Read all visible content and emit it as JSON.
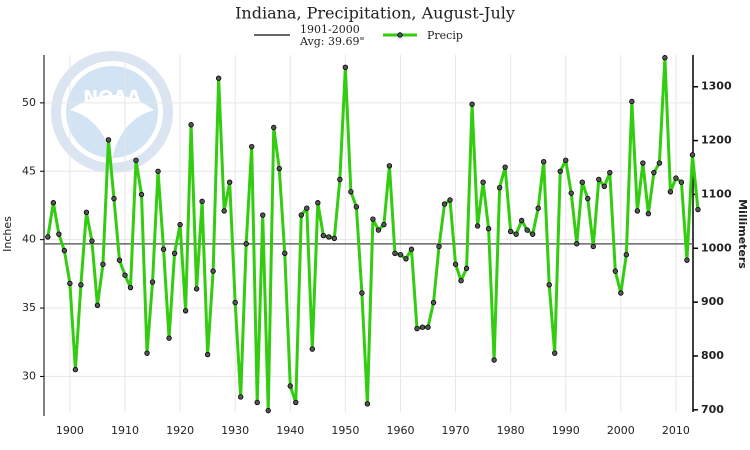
{
  "chart_data": {
    "type": "line",
    "title": "Indiana, Precipitation, August-July",
    "logo_text": "NOAA",
    "ylabel": "Inches",
    "y2label": "Millimeters",
    "x": [
      1896,
      1897,
      1898,
      1899,
      1900,
      1901,
      1902,
      1903,
      1904,
      1905,
      1906,
      1907,
      1908,
      1909,
      1910,
      1911,
      1912,
      1913,
      1914,
      1915,
      1916,
      1917,
      1918,
      1919,
      1920,
      1921,
      1922,
      1923,
      1924,
      1925,
      1926,
      1927,
      1928,
      1929,
      1930,
      1931,
      1932,
      1933,
      1934,
      1935,
      1936,
      1937,
      1938,
      1939,
      1940,
      1941,
      1942,
      1943,
      1944,
      1945,
      1946,
      1947,
      1948,
      1949,
      1950,
      1951,
      1952,
      1953,
      1954,
      1955,
      1956,
      1957,
      1958,
      1959,
      1960,
      1961,
      1962,
      1963,
      1964,
      1965,
      1966,
      1967,
      1968,
      1969,
      1970,
      1971,
      1972,
      1973,
      1974,
      1975,
      1976,
      1977,
      1978,
      1979,
      1980,
      1981,
      1982,
      1983,
      1984,
      1985,
      1986,
      1987,
      1988,
      1989,
      1990,
      1991,
      1992,
      1993,
      1994,
      1995,
      1996,
      1997,
      1998,
      1999,
      2000,
      2001,
      2002,
      2003,
      2004,
      2005,
      2006,
      2007,
      2008,
      2009,
      2010,
      2011,
      2012,
      2013,
      2014
    ],
    "series": [
      {
        "name": "Precip",
        "color": "#33cc11",
        "values": [
          40.2,
          42.7,
          40.4,
          39.2,
          36.8,
          30.5,
          36.7,
          42.0,
          39.9,
          35.2,
          38.2,
          47.3,
          43.0,
          38.5,
          37.4,
          36.5,
          45.8,
          43.3,
          31.7,
          36.9,
          45.0,
          39.3,
          32.8,
          39.0,
          41.1,
          34.8,
          48.4,
          36.4,
          42.8,
          31.6,
          37.7,
          51.8,
          42.1,
          44.2,
          35.4,
          28.5,
          39.7,
          46.8,
          28.1,
          41.8,
          27.5,
          48.2,
          45.2,
          39.0,
          29.3,
          28.1,
          41.8,
          42.3,
          32.0,
          42.7,
          40.3,
          40.2,
          40.1,
          44.4,
          52.6,
          43.5,
          42.4,
          36.1,
          28.0,
          41.5,
          40.7,
          41.1,
          45.4,
          39.0,
          38.9,
          38.6,
          39.3,
          33.5,
          33.6,
          33.6,
          35.4,
          39.5,
          42.6,
          42.9,
          38.2,
          37.0,
          37.9,
          49.9,
          41.0,
          44.2,
          40.8,
          31.2,
          43.8,
          45.3,
          40.6,
          40.4,
          41.4,
          40.7,
          40.4,
          42.3,
          45.7,
          36.7,
          31.7,
          45.0,
          45.8,
          43.4,
          39.7,
          44.2,
          43.0,
          39.5,
          44.4,
          43.9,
          44.9,
          37.7,
          36.1,
          38.9,
          50.1,
          42.1,
          45.6,
          41.9,
          44.9,
          45.6,
          53.3,
          43.5,
          44.5,
          44.2,
          38.5,
          46.2,
          42.2
        ]
      }
    ],
    "reference_line": {
      "label_lines": [
        "1901-2000",
        "Avg: 39.69\""
      ],
      "value": 39.69,
      "color": "#666666"
    },
    "xlim": [
      1895.3,
      2013.1
    ],
    "xticks": [
      1900,
      1910,
      1920,
      1930,
      1940,
      1950,
      1960,
      1970,
      1980,
      1990,
      2000,
      2010
    ],
    "ylim": [
      27.4,
      53.5
    ],
    "yticks": [
      30,
      35,
      40,
      45,
      50
    ],
    "y2lim": [
      695.96,
      1358.9
    ],
    "y2ticks": [
      700,
      800,
      900,
      1000,
      1100,
      1200,
      1300
    ],
    "grid": true
  }
}
